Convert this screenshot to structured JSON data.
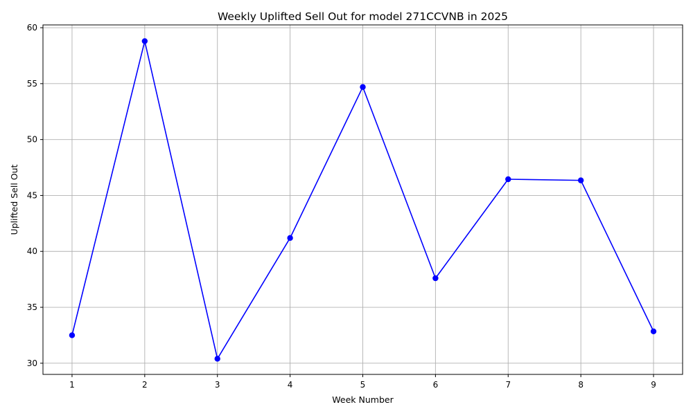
{
  "chart_data": {
    "type": "line",
    "title": "Weekly Uplifted Sell Out for model 271CCVNB in 2025",
    "xlabel": "Week Number",
    "ylabel": "Uplifted Sell Out",
    "x": [
      1,
      2,
      3,
      4,
      5,
      6,
      7,
      8,
      9
    ],
    "series": [
      {
        "values": [
          32.5,
          58.8,
          30.4,
          41.2,
          54.7,
          37.6,
          46.45,
          46.35,
          32.85
        ],
        "color": "#0000ff",
        "marker": "circle"
      }
    ],
    "xlim": [
      0.6,
      9.4
    ],
    "ylim": [
      29.0,
      60.25
    ],
    "xticks": [
      "1",
      "2",
      "3",
      "4",
      "5",
      "6",
      "7",
      "8",
      "9"
    ],
    "yticks": [
      "30",
      "35",
      "40",
      "45",
      "50",
      "55",
      "60"
    ],
    "grid": true
  }
}
